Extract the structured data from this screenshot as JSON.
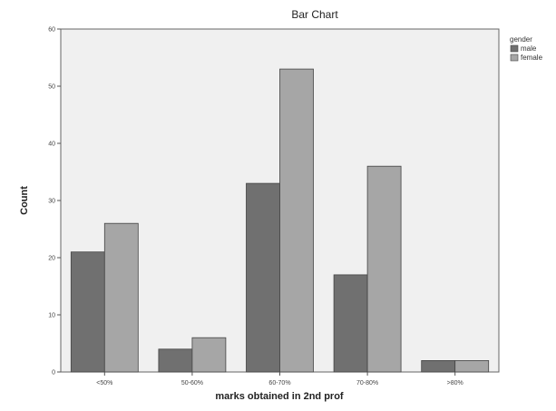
{
  "chart_data": {
    "type": "bar",
    "title": "Bar Chart",
    "xlabel": "marks obtained in 2nd prof",
    "ylabel": "Count",
    "categories": [
      "<50%",
      "50-60%",
      "60-70%",
      "70-80%",
      ">80%"
    ],
    "series": [
      {
        "name": "male",
        "values": [
          21,
          4,
          33,
          17,
          2
        ]
      },
      {
        "name": "female",
        "values": [
          26,
          6,
          53,
          36,
          2
        ]
      }
    ],
    "ylim": [
      0,
      60
    ],
    "yticks": [
      "0",
      "10",
      "20",
      "30",
      "40",
      "50",
      "60"
    ],
    "legend": {
      "title": "gender",
      "placement": "top-right"
    },
    "grid": false,
    "colors": {
      "male": "#707070",
      "female": "#a6a6a6",
      "plot_bg": "#f0f0f0",
      "frame": "#666666"
    }
  }
}
